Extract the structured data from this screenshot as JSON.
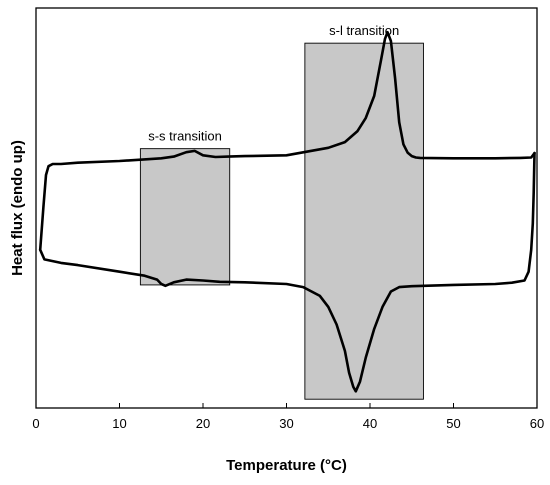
{
  "chart_data": {
    "type": "line",
    "title": "",
    "xlabel": "Temperature (°C)",
    "ylabel": "Heat flux (endo up)",
    "xlim": [
      0,
      60
    ],
    "xticks": [
      0,
      10,
      20,
      30,
      40,
      50,
      60
    ],
    "y_tick_labels_shown": false,
    "grid": false,
    "legend": "none",
    "colors": {
      "line": "#000000",
      "shade": "#c8c8c8"
    },
    "regions": [
      {
        "label": "s-s transition",
        "x_range": [
          12.5,
          23.2
        ],
        "y_range": [
          0.26,
          0.57
        ]
      },
      {
        "label": "s-l transition",
        "x_range": [
          32.2,
          46.4
        ],
        "y_range": [
          0.0,
          0.81
        ]
      }
    ],
    "series": [
      {
        "segment": "heating",
        "x": [
          0.5,
          0.9,
          1.2,
          1.5,
          2.0,
          3.0,
          5,
          10,
          15,
          16.5,
          18,
          19,
          20,
          21.5,
          23,
          25,
          30,
          35,
          37,
          38.5,
          39.5,
          40.5,
          41.3,
          41.8,
          42.1,
          42.5,
          43,
          43.5,
          44,
          44.5,
          45,
          45.5,
          46,
          50,
          55,
          58,
          59.3,
          59.7
        ],
        "y": [
          0.34,
          0.44,
          0.51,
          0.53,
          0.535,
          0.535,
          0.538,
          0.542,
          0.548,
          0.552,
          0.562,
          0.565,
          0.555,
          0.551,
          0.552,
          0.553,
          0.555,
          0.572,
          0.585,
          0.61,
          0.64,
          0.69,
          0.77,
          0.82,
          0.835,
          0.815,
          0.73,
          0.63,
          0.58,
          0.561,
          0.553,
          0.55,
          0.549,
          0.548,
          0.548,
          0.549,
          0.55,
          0.56
        ]
      },
      {
        "segment": "cooling",
        "x": [
          59.7,
          59.6,
          59.5,
          59.3,
          59.0,
          58.5,
          57,
          55,
          50,
          45,
          43.5,
          42.5,
          41.5,
          40.5,
          39.5,
          38.8,
          38.3,
          38.0,
          37.5,
          37,
          36,
          35,
          34,
          32,
          30,
          25,
          22,
          20,
          18,
          16.5,
          15.5,
          15,
          14.5,
          13,
          10,
          5,
          3,
          1,
          0.5
        ],
        "y": [
          0.56,
          0.47,
          0.4,
          0.34,
          0.29,
          0.27,
          0.265,
          0.262,
          0.26,
          0.257,
          0.255,
          0.245,
          0.21,
          0.16,
          0.095,
          0.04,
          0.018,
          0.028,
          0.06,
          0.11,
          0.17,
          0.21,
          0.235,
          0.255,
          0.262,
          0.266,
          0.267,
          0.27,
          0.272,
          0.266,
          0.258,
          0.262,
          0.272,
          0.281,
          0.29,
          0.305,
          0.31,
          0.318,
          0.34
        ]
      }
    ]
  }
}
